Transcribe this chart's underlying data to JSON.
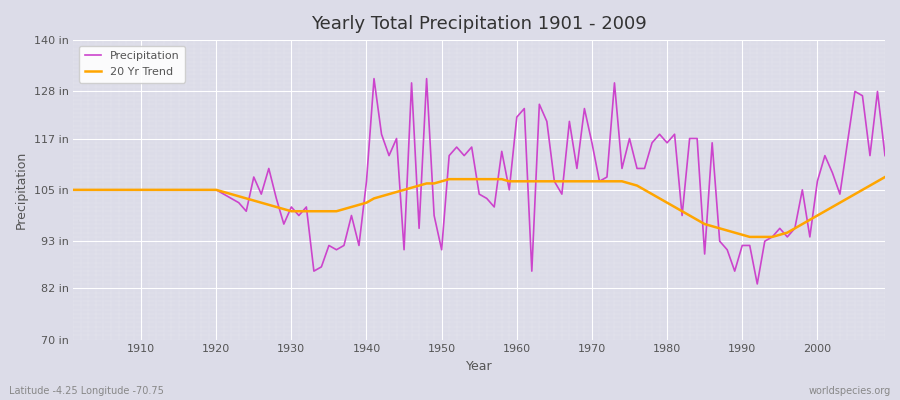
{
  "title": "Yearly Total Precipitation 1901 - 2009",
  "xlabel": "Year",
  "ylabel": "Precipitation",
  "subtitle_left": "Latitude -4.25 Longitude -70.75",
  "subtitle_right": "worldspecies.org",
  "bg_color": "#dcdce8",
  "plot_bg_color": "#dcdce8",
  "precip_color": "#cc44cc",
  "trend_color": "#ffa500",
  "precip_label": "Precipitation",
  "trend_label": "20 Yr Trend",
  "ylim": [
    70,
    140
  ],
  "yticks": [
    70,
    82,
    93,
    105,
    117,
    128,
    140
  ],
  "ytick_labels": [
    "70 in",
    "82 in",
    "93 in",
    "105 in",
    "117 in",
    "128 in",
    "140 in"
  ],
  "years": [
    1901,
    1902,
    1903,
    1904,
    1905,
    1906,
    1907,
    1908,
    1909,
    1910,
    1911,
    1912,
    1913,
    1914,
    1915,
    1916,
    1917,
    1918,
    1919,
    1920,
    1921,
    1922,
    1923,
    1924,
    1925,
    1926,
    1927,
    1928,
    1929,
    1930,
    1931,
    1932,
    1933,
    1934,
    1935,
    1936,
    1937,
    1938,
    1939,
    1940,
    1941,
    1942,
    1943,
    1944,
    1945,
    1946,
    1947,
    1948,
    1949,
    1950,
    1951,
    1952,
    1953,
    1954,
    1955,
    1956,
    1957,
    1958,
    1959,
    1960,
    1961,
    1962,
    1963,
    1964,
    1965,
    1966,
    1967,
    1968,
    1969,
    1970,
    1971,
    1972,
    1973,
    1974,
    1975,
    1976,
    1977,
    1978,
    1979,
    1980,
    1981,
    1982,
    1983,
    1984,
    1985,
    1986,
    1987,
    1988,
    1989,
    1990,
    1991,
    1992,
    1993,
    1994,
    1995,
    1996,
    1997,
    1998,
    1999,
    2000,
    2001,
    2002,
    2003,
    2004,
    2005,
    2006,
    2007,
    2008,
    2009
  ],
  "precip": [
    105,
    105,
    105,
    105,
    105,
    105,
    105,
    105,
    105,
    105,
    105,
    105,
    105,
    105,
    105,
    105,
    105,
    105,
    105,
    105,
    104,
    103,
    102,
    100,
    108,
    104,
    110,
    103,
    97,
    101,
    99,
    101,
    86,
    87,
    92,
    91,
    92,
    99,
    92,
    107,
    131,
    118,
    113,
    117,
    91,
    130,
    96,
    131,
    99,
    91,
    113,
    115,
    113,
    115,
    104,
    103,
    101,
    114,
    105,
    122,
    124,
    86,
    125,
    121,
    107,
    104,
    121,
    110,
    124,
    116,
    107,
    108,
    130,
    110,
    117,
    110,
    110,
    116,
    118,
    116,
    118,
    99,
    117,
    117,
    90,
    116,
    93,
    91,
    86,
    92,
    92,
    83,
    93,
    94,
    96,
    94,
    96,
    105,
    94,
    107,
    113,
    109,
    104,
    116,
    128,
    127,
    113,
    128,
    113
  ],
  "trend": [
    105,
    105,
    105,
    105,
    105,
    105,
    105,
    105,
    105,
    105,
    105,
    105,
    105,
    105,
    105,
    105,
    105,
    105,
    105,
    105,
    104.5,
    104,
    103.5,
    103,
    102.5,
    102,
    101.5,
    101,
    100.5,
    100,
    100,
    100,
    100,
    100,
    100,
    100,
    100.5,
    101,
    101.5,
    102,
    103,
    103.5,
    104,
    104.5,
    105,
    105.5,
    106,
    106.5,
    106.5,
    107,
    107.5,
    107.5,
    107.5,
    107.5,
    107.5,
    107.5,
    107.5,
    107.5,
    107,
    107,
    107,
    107,
    107,
    107,
    107,
    107,
    107,
    107,
    107,
    107,
    107,
    107,
    107,
    107,
    106.5,
    106,
    105,
    104,
    103,
    102,
    101,
    100,
    99,
    98,
    97,
    96.5,
    96,
    95.5,
    95,
    94.5,
    94,
    94,
    94,
    94,
    94.5,
    95,
    96,
    97,
    98,
    99,
    100,
    101,
    102,
    103,
    104,
    105,
    106,
    107,
    108
  ]
}
